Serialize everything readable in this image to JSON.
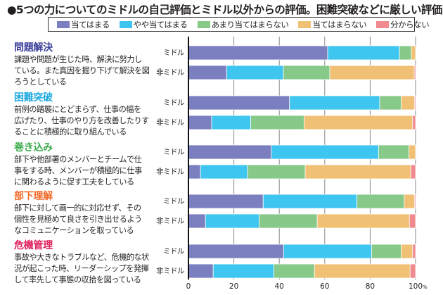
{
  "chart_data": {
    "type": "bar",
    "orientation": "horizontal",
    "stacked": true,
    "title": "●5つの力についてのミドルの自己評価とミドル以外からの評価。困難突破などに厳しい評価",
    "xlabel": "",
    "ylabel": "",
    "xlim": [
      0,
      100
    ],
    "x_ticks": [
      "0",
      "20",
      "40",
      "60",
      "80",
      "100"
    ],
    "x_unit": "%",
    "grid": true,
    "legend_position": "top",
    "legend": [
      {
        "name": "当てはまる",
        "color": "#7b7fc0"
      },
      {
        "name": "やや当てはまる",
        "color": "#3ec6f0"
      },
      {
        "name": "あまり当てはまらない",
        "color": "#86c988"
      },
      {
        "name": "当てはまらない",
        "color": "#f0c074"
      },
      {
        "name": "分からない",
        "color": "#f08a8f"
      }
    ],
    "groups": [
      {
        "title": "問題解決",
        "title_color": "#3b3f9a",
        "description": [
          "課題や問題が生じた時、解決に努力し",
          "ている。また真因を掘り下げて解決を図",
          "ろうとしている"
        ],
        "rows": [
          {
            "label": "ミドル",
            "values": [
              61.3,
              31.6,
              5.2,
              1.9,
              0.0
            ]
          },
          {
            "label": "非ミドル",
            "values": [
              16.8,
              25.0,
              20.4,
              37.2,
              0.6
            ]
          }
        ]
      },
      {
        "title": "困難突破",
        "title_color": "#1fa9e1",
        "description": [
          "前例の踏襲にとどまらず、仕事の幅を",
          "広げたり、仕事のやり方を改善したりす",
          "ることに積極的に取り組んでいる"
        ],
        "rows": [
          {
            "label": "ミドル",
            "values": [
              44.5,
              39.7,
              9.5,
              5.8,
              0.5
            ]
          },
          {
            "label": "非ミドル",
            "values": [
              10.2,
              17.2,
              23.5,
              47.8,
              1.3
            ]
          }
        ]
      },
      {
        "title": "巻き込み",
        "title_color": "#3aaa4a",
        "description": [
          "部下や他部署のメンバーとチームで仕",
          "事をする時、メンバーが積極的に仕事",
          "に関わるように促す工夫をしている"
        ],
        "rows": [
          {
            "label": "ミドル",
            "values": [
              36.5,
              47.2,
              13.4,
              2.9,
              0.0
            ]
          },
          {
            "label": "非ミドル",
            "values": [
              5.3,
              20.7,
              25.4,
              46.5,
              2.1
            ]
          }
        ]
      },
      {
        "title": "部下理解",
        "title_color": "#f26b2a",
        "description": [
          "部下に対して画一的に対応せず、その",
          "個性を見極めて良さを引き出せるよう",
          "なコミュニケーションを取っている"
        ],
        "rows": [
          {
            "label": "ミドル",
            "values": [
              32.9,
              41.3,
              20.8,
              4.5,
              0.5
            ]
          },
          {
            "label": "非ミドル",
            "values": [
              7.5,
              23.6,
              25.6,
              40.6,
              2.7
            ]
          }
        ]
      },
      {
        "title": "危機管理",
        "title_color": "#e0245e",
        "description": [
          "事故や大きなトラブルなど、危機的な状",
          "況が起こった時、リーダーシップを発揮",
          "して率先して事態の収拾を図っている"
        ],
        "rows": [
          {
            "label": "ミドル",
            "values": [
              41.9,
              38.7,
              13.1,
              5.0,
              1.3
            ]
          },
          {
            "label": "非ミドル",
            "values": [
              10.9,
              26.7,
              17.9,
              42.1,
              2.4
            ]
          }
        ]
      }
    ]
  }
}
